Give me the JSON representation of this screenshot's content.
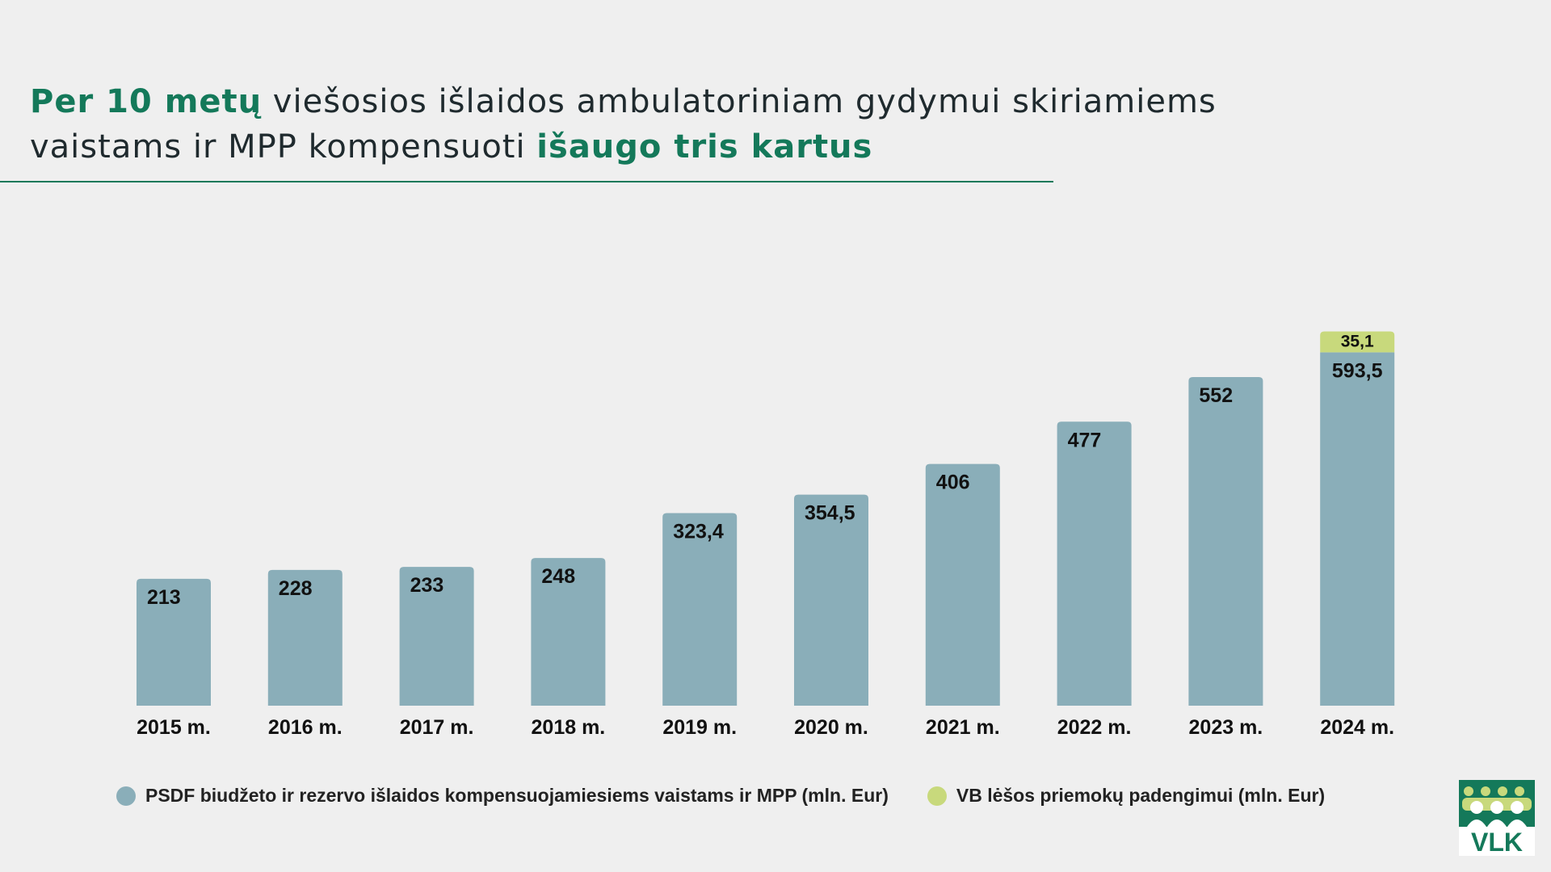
{
  "title": {
    "part1_highlight": "Per 10 metų",
    "part2": " viešosios išlaidos ambulatoriniam gydymui skiriamiems vaistams ir MPP kompensuoti ",
    "part3_highlight": "išaugo tris kartus"
  },
  "colors": {
    "accent": "#14795a",
    "series_main": "#8aaeb9",
    "series_extra": "#c8d97c",
    "background": "#efefef"
  },
  "chart_data": {
    "type": "bar",
    "stacked": true,
    "categories": [
      "2015 m.",
      "2016 m.",
      "2017 m.",
      "2018 m.",
      "2019 m.",
      "2020 m.",
      "2021 m.",
      "2022 m.",
      "2023 m.",
      "2024 m."
    ],
    "series": [
      {
        "name": "PSDF biudžeto ir rezervo išlaidos kompensuojamiesiems vaistams ir MPP (mln. Eur)",
        "values": [
          213,
          228,
          233,
          248,
          323.4,
          354.5,
          406,
          477,
          552,
          593.5
        ],
        "labels": [
          "213",
          "228",
          "233",
          "248",
          "323,4",
          "354,5",
          "406",
          "477",
          "552",
          "593,5"
        ]
      },
      {
        "name": "VB lėšos priemokų padengimui (mln. Eur)",
        "values": [
          0,
          0,
          0,
          0,
          0,
          0,
          0,
          0,
          0,
          35.1
        ],
        "labels": [
          "",
          "",
          "",
          "",
          "",
          "",
          "",
          "",
          "",
          "35,1"
        ]
      }
    ],
    "ylim": [
      0,
      650
    ],
    "grid": false,
    "legend": "bottom"
  },
  "legend": {
    "items": [
      "PSDF biudžeto ir rezervo išlaidos kompensuojamiesiems vaistams ir MPP (mln. Eur)",
      "VB lėšos priemokų padengimui (mln. Eur)"
    ]
  },
  "logo": {
    "text": "VLK"
  }
}
